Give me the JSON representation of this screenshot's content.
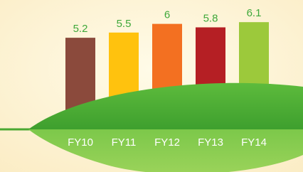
{
  "chart_data": {
    "type": "bar",
    "categories": [
      "FY10",
      "FY11",
      "FY12",
      "FY13",
      "FY14"
    ],
    "values": [
      5.2,
      5.5,
      6.0,
      5.8,
      6.1
    ],
    "colors": [
      "#8b4a3c",
      "#ffc20e",
      "#f37021",
      "#b51f24",
      "#9cc93b"
    ]
  }
}
